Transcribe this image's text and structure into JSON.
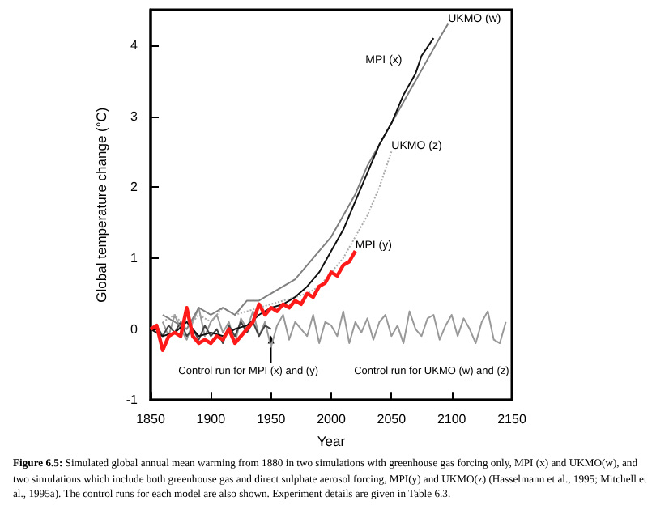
{
  "chart_data": {
    "type": "line",
    "xlabel": "Year",
    "ylabel": "Global temperature change (°C)",
    "xlim": [
      1850,
      2150
    ],
    "xticks": [
      1850,
      1900,
      1950,
      2000,
      2050,
      2100,
      2150
    ],
    "ylim": [
      -1,
      4.5
    ],
    "yticks": [
      -1,
      0,
      1,
      2,
      3,
      4
    ],
    "grid": false,
    "legend": false,
    "series": [
      {
        "name": "Control run for UKMO (w) and (z)",
        "color": "#999999",
        "line_style": "solid",
        "x": [
          1860,
          1865,
          1870,
          1875,
          1880,
          1885,
          1890,
          1895,
          1900,
          1905,
          1910,
          1915,
          1920,
          1925,
          1930,
          1935,
          1940,
          1945,
          1950,
          1955,
          1960,
          1965,
          1970,
          1975,
          1980,
          1985,
          1990,
          1995,
          2000,
          2005,
          2010,
          2015,
          2020,
          2025,
          2030,
          2035,
          2040,
          2045,
          2050,
          2055,
          2060,
          2065,
          2070,
          2075,
          2080,
          2085,
          2090,
          2095,
          2100,
          2105,
          2110,
          2115,
          2120,
          2125,
          2130,
          2135,
          2140,
          2145
        ],
        "values": [
          0.1,
          -0.1,
          0.2,
          0,
          -0.15,
          0.1,
          0.3,
          -0.1,
          0.1,
          0.2,
          -0.05,
          0.1,
          -0.2,
          0.15,
          0,
          0.25,
          -0.1,
          0.1,
          -0.25,
          0.05,
          0.2,
          -0.15,
          0.1,
          0,
          -0.1,
          0.2,
          -0.2,
          0.1,
          0.05,
          -0.1,
          0.25,
          -0.2,
          0.1,
          -0.05,
          0.15,
          -0.15,
          0.1,
          0.2,
          -0.1,
          0.05,
          -0.2,
          0.25,
          0,
          -0.1,
          0.15,
          0.2,
          -0.15,
          0.05,
          0.2,
          -0.1,
          0.15,
          0,
          -0.2,
          0.1,
          0.25,
          -0.15,
          -0.2,
          0.1
        ]
      },
      {
        "name": "Control run for MPI (x) and (y)",
        "color": "#444444",
        "line_style": "solid",
        "x": [
          1850,
          1855,
          1860,
          1865,
          1870,
          1875,
          1880,
          1885,
          1890,
          1895,
          1900,
          1905,
          1910,
          1915,
          1920,
          1925,
          1930,
          1935,
          1940,
          1945,
          1950
        ],
        "values": [
          0,
          0.05,
          -0.1,
          0.05,
          -0.05,
          0.1,
          -0.1,
          0,
          -0.15,
          0.05,
          -0.1,
          0,
          -0.2,
          0.05,
          -0.1,
          0.1,
          -0.05,
          0.1,
          -0.1,
          0.05,
          0
        ]
      },
      {
        "name": "UKMO (z)",
        "color": "#aaaaaa",
        "line_style": "dotted",
        "x": [
          1860,
          1870,
          1880,
          1890,
          1900,
          1910,
          1920,
          1930,
          1940,
          1950,
          1960,
          1970,
          1980,
          1990,
          2000,
          2010,
          2020,
          2030,
          2040,
          2050
        ],
        "values": [
          0.1,
          0.2,
          0,
          0.2,
          0.1,
          0.3,
          0.2,
          0.25,
          0.3,
          0.35,
          0.4,
          0.45,
          0.5,
          0.6,
          0.8,
          1,
          1.3,
          1.6,
          2,
          2.5
        ]
      },
      {
        "name": "UKMO (w)",
        "color": "#808080",
        "line_style": "solid",
        "x": [
          1860,
          1870,
          1880,
          1890,
          1900,
          1910,
          1920,
          1930,
          1940,
          1950,
          1960,
          1970,
          1980,
          1990,
          2000,
          2010,
          2020,
          2030,
          2040,
          2050,
          2060,
          2070,
          2080,
          2090,
          2097
        ],
        "values": [
          0.2,
          0.1,
          0,
          0.3,
          0.2,
          0.3,
          0.2,
          0.4,
          0.4,
          0.5,
          0.6,
          0.7,
          0.9,
          1.1,
          1.3,
          1.6,
          1.9,
          2.3,
          2.6,
          2.9,
          3.2,
          3.5,
          3.8,
          4.1,
          4.3
        ]
      },
      {
        "name": "MPI (x)",
        "color": "#111111",
        "line_style": "solid",
        "x": [
          1850,
          1860,
          1870,
          1880,
          1890,
          1900,
          1910,
          1920,
          1930,
          1940,
          1950,
          1960,
          1970,
          1980,
          1990,
          2000,
          2010,
          2020,
          2030,
          2040,
          2050,
          2060,
          2070,
          2075,
          2085
        ],
        "values": [
          0,
          -0.1,
          -0.05,
          0.1,
          -0.1,
          -0.05,
          -0.1,
          0,
          0.05,
          0.2,
          0.3,
          0.35,
          0.45,
          0.6,
          0.8,
          1.1,
          1.4,
          1.8,
          2.2,
          2.6,
          2.9,
          3.3,
          3.6,
          3.85,
          4.1
        ]
      },
      {
        "name": "MPI (y)",
        "color": "#ff1a1a",
        "line_style": "solid",
        "x": [
          1850,
          1855,
          1860,
          1865,
          1870,
          1875,
          1880,
          1885,
          1890,
          1895,
          1900,
          1905,
          1910,
          1915,
          1920,
          1925,
          1930,
          1935,
          1940,
          1945,
          1950,
          1955,
          1960,
          1965,
          1970,
          1975,
          1980,
          1985,
          1990,
          1995,
          2000,
          2005,
          2010,
          2015,
          2020
        ],
        "values": [
          0,
          0.05,
          -0.3,
          -0.1,
          -0.05,
          -0.1,
          0.3,
          -0.1,
          -0.2,
          -0.15,
          -0.2,
          -0.1,
          -0.15,
          0,
          -0.2,
          -0.1,
          0,
          0.1,
          0.35,
          0.2,
          0.3,
          0.25,
          0.35,
          0.3,
          0.4,
          0.35,
          0.5,
          0.45,
          0.6,
          0.65,
          0.8,
          0.75,
          0.9,
          0.95,
          1.1
        ]
      }
    ],
    "annotations": [
      "Figure 6.5: Simulated global annual mean warming from 1880 in two simulations with greenhouse gas forcing only, MPI (x) and UKMO(w), and two simulations which include both greenhouse gas and direct sulphate aerosol forcing, MPI(y) and UKMO(z) (Hasselmann et al., 1995; Mitchell et al., 1995a). The control runs for each model are also shown. Experiment details are given in Table 6.3."
    ]
  }
}
